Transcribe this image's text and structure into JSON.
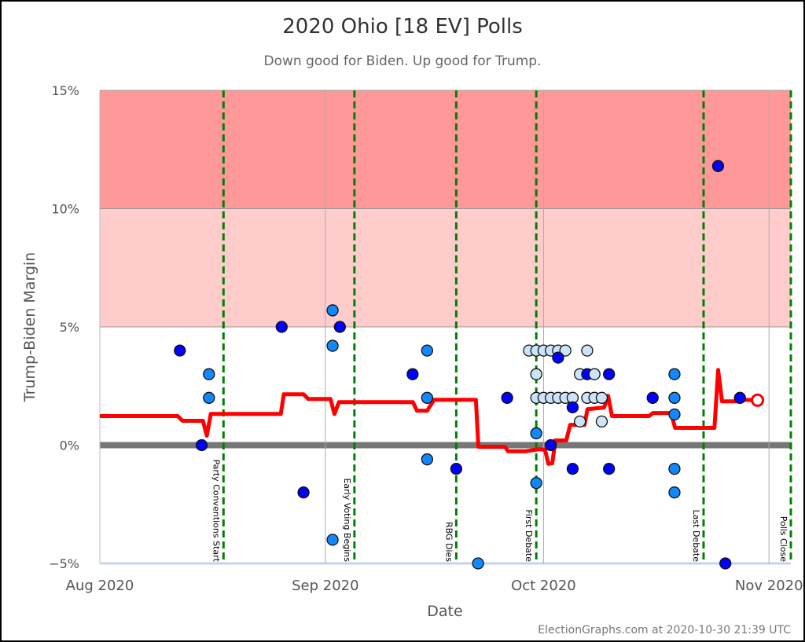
{
  "chart_data": {
    "type": "scatter",
    "title": "2020 Ohio [18 EV] Polls",
    "subtitle": "Down good for Biden. Up good for Trump.",
    "xlabel": "Date",
    "ylabel": "Trump-Biden Margin",
    "credit": "ElectionGraphs.com at 2020-10-30 21:39 UTC",
    "xlim": [
      "2020-08-01",
      "2020-11-04"
    ],
    "ylim": [
      -5,
      15
    ],
    "x_ticks": [
      {
        "date": "2020-08-01",
        "label": "Aug 2020"
      },
      {
        "date": "2020-09-01",
        "label": "Sep 2020"
      },
      {
        "date": "2020-10-01",
        "label": "Oct 2020"
      },
      {
        "date": "2020-11-01",
        "label": "Nov 2020"
      }
    ],
    "y_ticks": [
      {
        "value": 15,
        "label": "15%"
      },
      {
        "value": 10,
        "label": "10%"
      },
      {
        "value": 5,
        "label": "5%"
      },
      {
        "value": 0,
        "label": "0%"
      },
      {
        "value": -5,
        "label": "−5%"
      }
    ],
    "bands": [
      {
        "from": 10,
        "to": 15,
        "color": "#ff9999"
      },
      {
        "from": 5,
        "to": 10,
        "color": "#ffcccc"
      }
    ],
    "colors": {
      "average_line": "#ff0000",
      "event_line": "#008000",
      "zero_line": "#777777",
      "poll_dark": "#0000ff",
      "poll_medium": "#1188ff",
      "poll_light": "#cce4fa"
    },
    "events": [
      {
        "date": "2020-08-17",
        "label": "Party Conventions Start"
      },
      {
        "date": "2020-09-04",
        "label": "Early Voting Begins"
      },
      {
        "date": "2020-09-18",
        "label": "RBG Dies"
      },
      {
        "date": "2020-09-29",
        "label": "First Debate"
      },
      {
        "date": "2020-10-22",
        "label": "Last Debate"
      },
      {
        "date": "2020-11-03",
        "label": "Polls Close"
      }
    ],
    "polls": [
      {
        "date": "2020-08-12",
        "value": 4,
        "shade": "dark"
      },
      {
        "date": "2020-08-16",
        "value": 3,
        "shade": "medium"
      },
      {
        "date": "2020-08-16",
        "value": 2,
        "shade": "medium"
      },
      {
        "date": "2020-08-15",
        "value": 0,
        "shade": "dark"
      },
      {
        "date": "2020-08-26",
        "value": 5,
        "shade": "dark"
      },
      {
        "date": "2020-08-29",
        "value": -2,
        "shade": "dark"
      },
      {
        "date": "2020-09-02",
        "value": 5.7,
        "shade": "medium"
      },
      {
        "date": "2020-09-02",
        "value": 4.2,
        "shade": "medium"
      },
      {
        "date": "2020-09-03",
        "value": 5,
        "shade": "dark"
      },
      {
        "date": "2020-09-02",
        "value": -4,
        "shade": "medium"
      },
      {
        "date": "2020-09-13",
        "value": 3,
        "shade": "dark"
      },
      {
        "date": "2020-09-15",
        "value": 4,
        "shade": "medium"
      },
      {
        "date": "2020-09-15",
        "value": 2,
        "shade": "medium"
      },
      {
        "date": "2020-09-15",
        "value": -0.6,
        "shade": "medium"
      },
      {
        "date": "2020-09-19",
        "value": -1,
        "shade": "dark"
      },
      {
        "date": "2020-09-22",
        "value": -5,
        "shade": "medium"
      },
      {
        "date": "2020-09-26",
        "value": 2,
        "shade": "dark"
      },
      {
        "date": "2020-09-29",
        "value": 4,
        "shade": "light"
      },
      {
        "date": "2020-09-30",
        "value": 4,
        "shade": "light"
      },
      {
        "date": "2020-10-01",
        "value": 4,
        "shade": "light"
      },
      {
        "date": "2020-10-02",
        "value": 4,
        "shade": "light"
      },
      {
        "date": "2020-10-03",
        "value": 4,
        "shade": "light"
      },
      {
        "date": "2020-10-04",
        "value": 4,
        "shade": "light"
      },
      {
        "date": "2020-10-07",
        "value": 4,
        "shade": "light"
      },
      {
        "date": "2020-10-03",
        "value": 3.7,
        "shade": "dark"
      },
      {
        "date": "2020-09-30",
        "value": 3,
        "shade": "light"
      },
      {
        "date": "2020-10-06",
        "value": 3,
        "shade": "light"
      },
      {
        "date": "2020-10-07",
        "value": 3,
        "shade": "dark"
      },
      {
        "date": "2020-10-08",
        "value": 3,
        "shade": "light"
      },
      {
        "date": "2020-10-10",
        "value": 3,
        "shade": "dark"
      },
      {
        "date": "2020-09-30",
        "value": 2,
        "shade": "light"
      },
      {
        "date": "2020-10-01",
        "value": 2,
        "shade": "light"
      },
      {
        "date": "2020-10-02",
        "value": 2,
        "shade": "light"
      },
      {
        "date": "2020-10-03",
        "value": 2,
        "shade": "light"
      },
      {
        "date": "2020-10-04",
        "value": 2,
        "shade": "light"
      },
      {
        "date": "2020-10-05",
        "value": 2,
        "shade": "light"
      },
      {
        "date": "2020-10-07",
        "value": 2,
        "shade": "light"
      },
      {
        "date": "2020-10-08",
        "value": 2,
        "shade": "light"
      },
      {
        "date": "2020-10-09",
        "value": 2,
        "shade": "light"
      },
      {
        "date": "2020-10-05",
        "value": 1.6,
        "shade": "dark"
      },
      {
        "date": "2020-10-06",
        "value": 1,
        "shade": "light"
      },
      {
        "date": "2020-10-09",
        "value": 1,
        "shade": "light"
      },
      {
        "date": "2020-09-30",
        "value": 0.5,
        "shade": "medium"
      },
      {
        "date": "2020-10-02",
        "value": 0,
        "shade": "dark"
      },
      {
        "date": "2020-10-05",
        "value": -1,
        "shade": "dark"
      },
      {
        "date": "2020-10-10",
        "value": -1,
        "shade": "dark"
      },
      {
        "date": "2020-09-30",
        "value": -1.6,
        "shade": "medium"
      },
      {
        "date": "2020-10-16",
        "value": 2,
        "shade": "dark"
      },
      {
        "date": "2020-10-19",
        "value": 3,
        "shade": "medium"
      },
      {
        "date": "2020-10-19",
        "value": 2,
        "shade": "medium"
      },
      {
        "date": "2020-10-19",
        "value": 1.3,
        "shade": "medium"
      },
      {
        "date": "2020-10-19",
        "value": -1,
        "shade": "medium"
      },
      {
        "date": "2020-10-19",
        "value": -2,
        "shade": "medium"
      },
      {
        "date": "2020-10-25",
        "value": 11.8,
        "shade": "dark"
      },
      {
        "date": "2020-10-26",
        "value": -5,
        "shade": "dark"
      },
      {
        "date": "2020-10-28",
        "value": 2,
        "shade": "dark"
      }
    ],
    "average": [
      [
        "2020-08-01T00:00",
        1.23
      ],
      [
        "2020-08-11T17:00",
        1.23
      ],
      [
        "2020-08-12T09:00",
        1.03
      ],
      [
        "2020-08-15T04:00",
        1.03
      ],
      [
        "2020-08-15T17:00",
        0.4
      ],
      [
        "2020-08-16T06:00",
        1.32
      ],
      [
        "2020-08-25T21:00",
        1.32
      ],
      [
        "2020-08-26T07:00",
        2.15
      ],
      [
        "2020-08-29T00:00",
        2.15
      ],
      [
        "2020-08-29T16:00",
        1.95
      ],
      [
        "2020-09-01T17:00",
        1.95
      ],
      [
        "2020-09-02T06:00",
        1.32
      ],
      [
        "2020-09-02T21:00",
        1.82
      ],
      [
        "2020-09-13T01:00",
        1.82
      ],
      [
        "2020-09-13T14:00",
        1.46
      ],
      [
        "2020-09-15T00:00",
        1.46
      ],
      [
        "2020-09-15T23:00",
        1.92
      ],
      [
        "2020-09-21T17:00",
        1.92
      ],
      [
        "2020-09-22T01:00",
        -0.07
      ],
      [
        "2020-09-25T17:00",
        -0.07
      ],
      [
        "2020-09-26T03:00",
        -0.26
      ],
      [
        "2020-09-28T12:00",
        -0.26
      ],
      [
        "2020-09-30T09:00",
        -0.17
      ],
      [
        "2020-10-01T05:00",
        -0.2
      ],
      [
        "2020-10-01T16:00",
        -0.79
      ],
      [
        "2020-10-02T05:00",
        -0.76
      ],
      [
        "2020-10-02T15:00",
        0.2
      ],
      [
        "2020-10-04T03:00",
        0.2
      ],
      [
        "2020-10-04T16:00",
        0.86
      ],
      [
        "2020-10-06T15:00",
        0.86
      ],
      [
        "2020-10-07T01:00",
        1.52
      ],
      [
        "2020-10-09T08:00",
        1.59
      ],
      [
        "2020-10-09T21:00",
        2.09
      ],
      [
        "2020-10-10T10:00",
        1.23
      ],
      [
        "2020-10-15T12:00",
        1.23
      ],
      [
        "2020-10-16T01:00",
        1.36
      ],
      [
        "2020-10-18T13:00",
        1.36
      ],
      [
        "2020-10-19T02:00",
        0.73
      ],
      [
        "2020-10-24T12:00",
        0.73
      ],
      [
        "2020-10-25T00:00",
        3.18
      ],
      [
        "2020-10-25T13:00",
        1.85
      ],
      [
        "2020-10-27T23:00",
        1.85
      ],
      [
        "2020-10-28T12:00",
        1.92
      ],
      [
        "2020-10-30T10:00",
        1.9
      ]
    ]
  }
}
